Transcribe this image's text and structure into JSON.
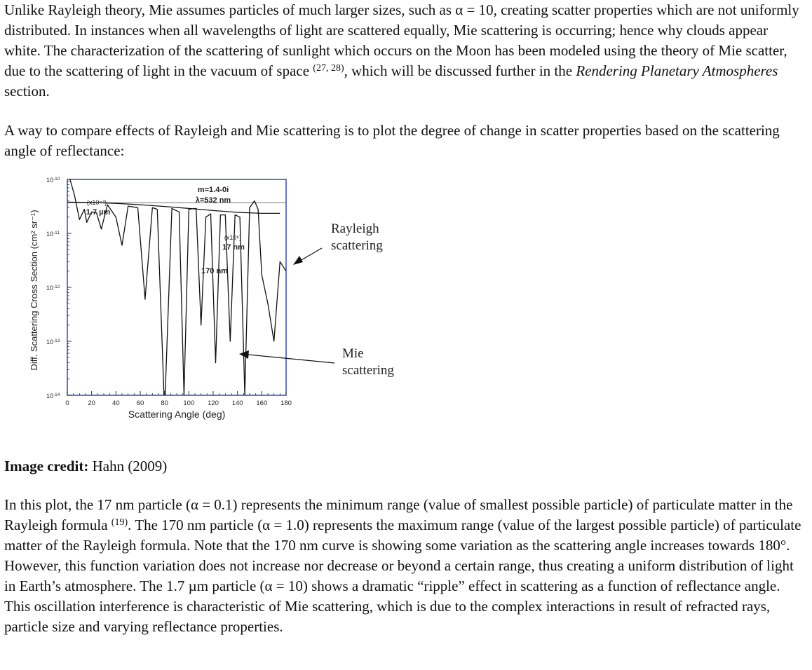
{
  "paragraphs": {
    "p1": {
      "a": "Unlike Rayleigh theory, Mie assumes particles of much larger sizes, such as α = 10, creating scatter properties which are not uniformly distributed. In instances when all wavelengths of light are scattered equally, Mie scattering is occurring; hence why clouds appear white. The characterization of the scattering of sunlight which occurs on the Moon has been modeled using the theory of Mie scatter, due to the scattering of light in the vacuum of space ",
      "sup": "(27, 28)",
      "b": ", which will be discussed further in the ",
      "italic": "Rendering Planetary Atmospheres",
      "c": " section."
    },
    "p2": "A way to compare effects of Rayleigh and Mie scattering is to plot the degree of change in scatter properties based on the scattering angle of reflectance:",
    "credit": {
      "label": "Image credit:",
      "text": " Hahn (2009)"
    },
    "p3": {
      "a": "In this plot, the 17 nm particle (α = 0.1) represents the minimum range (value of smallest possible particle) of particulate matter in the Rayleigh formula ",
      "sup": "(19)",
      "b": ". The 170 nm particle (α = 1.0) represents the maximum range (value of the largest possible particle) of particulate matter of the Rayleigh formula. Note that the 170 nm curve is showing some variation as the scattering angle increases towards 180°. However, this function variation does not increase nor decrease or beyond a certain range, thus creating a uniform distribution of light in Earth’s atmosphere. The 1.7 µm particle (α = 10) shows a dramatic “ripple” effect in scattering as a function of reflectance angle. This oscillation interference is characteristic of Mie scattering, which is due to the complex interactions in result of refracted rays, particle size and varying reflectance properties."
    }
  },
  "chart_data": {
    "type": "line",
    "xlabel": "Scattering Angle (deg)",
    "ylabel": "Diff. Scattering Cross Section (cm² sr⁻¹)",
    "xlim": [
      0,
      180
    ],
    "ylim": [
      1e-14,
      1e-10
    ],
    "y_scale": "log",
    "x_ticks": [
      "0",
      "20",
      "40",
      "60",
      "80",
      "100",
      "120",
      "140",
      "160",
      "180"
    ],
    "y_ticks": [
      {
        "base": "10",
        "exp": "-10"
      },
      {
        "base": "10",
        "exp": "-11"
      },
      {
        "base": "10",
        "exp": "-12"
      },
      {
        "base": "10",
        "exp": "-13"
      },
      {
        "base": "10",
        "exp": "-14"
      }
    ],
    "params": {
      "line1": "m=1.4-0i",
      "line2": "λ=532 nm"
    },
    "series": [
      {
        "name": "17 nm",
        "scale_label": "(x10⁶)",
        "x": [
          0,
          180
        ],
        "y": [
          3.7e-11,
          3.7e-11
        ]
      },
      {
        "name": "170 nm",
        "x": [
          0,
          20,
          40,
          60,
          80,
          100,
          120,
          140,
          160,
          175
        ],
        "y": [
          3.8e-11,
          3.75e-11,
          3.6e-11,
          3.4e-11,
          3.15e-11,
          2.9e-11,
          2.65e-11,
          2.45e-11,
          2.35e-11,
          2.35e-11
        ]
      },
      {
        "name": "1.7 µm",
        "scale_label": "(x10⁻³)",
        "x": [
          0,
          6,
          10,
          14,
          16,
          20,
          24,
          28,
          33,
          40,
          45,
          50,
          58,
          64,
          70,
          74,
          80,
          86,
          92,
          96,
          100,
          106,
          110,
          114,
          118,
          122,
          126,
          130,
          134,
          138,
          142,
          146,
          150,
          154,
          157,
          160,
          165,
          170,
          175,
          180
        ],
        "y": [
          1.5e-10,
          5e-11,
          1.8e-11,
          2.8e-11,
          1.6e-11,
          2.5e-11,
          2.4e-11,
          1.2e-11,
          3.4e-11,
          2e-11,
          6e-12,
          3.2e-11,
          3e-11,
          6e-13,
          3e-11,
          2.8e-11,
          1e-15,
          2.9e-11,
          2.5e-11,
          1e-14,
          2.8e-11,
          2.9e-11,
          2e-13,
          2e-11,
          2.3e-11,
          4e-14,
          2.2e-11,
          2.2e-11,
          1e-13,
          2.2e-11,
          2e-11,
          1e-14,
          3e-11,
          4e-11,
          2.8e-11,
          1.7e-12,
          5e-13,
          1e-13,
          3e-12,
          2e-12
        ]
      }
    ],
    "annotations": {
      "rayleigh": [
        "Rayleigh",
        "scattering"
      ],
      "mie": [
        "Mie",
        "scattering"
      ]
    },
    "grid": false,
    "legend": "none"
  }
}
